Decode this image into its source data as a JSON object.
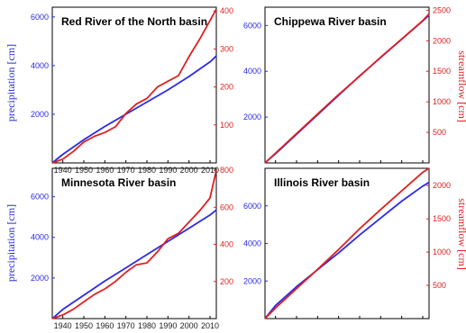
{
  "chart_data": [
    {
      "type": "line",
      "title": "Red River of the North basin",
      "xlim": [
        1935,
        2013
      ],
      "ylim_left": [
        0,
        6400
      ],
      "ylim_right": [
        0,
        410
      ],
      "left_ticks": [
        "2000",
        "4000",
        "6000"
      ],
      "right_ticks": [
        "100",
        "200",
        "300",
        "400"
      ],
      "ylabel_left": "precipitation [cm]",
      "ylabel_right": "",
      "colors": {
        "precip": "#2a2ae8",
        "flow": "#e02020"
      },
      "series": [
        {
          "axis": "left",
          "x": [
            1935,
            1940,
            1950,
            1960,
            1970,
            1980,
            1990,
            2000,
            2010,
            2013
          ],
          "values": [
            0,
            350,
            950,
            1500,
            2000,
            2500,
            3000,
            3550,
            4150,
            4400
          ]
        },
        {
          "axis": "right",
          "x": [
            1935,
            1940,
            1945,
            1950,
            1955,
            1960,
            1965,
            1970,
            1975,
            1980,
            1985,
            1990,
            1995,
            2000,
            2005,
            2010,
            2013
          ],
          "values": [
            0,
            10,
            30,
            55,
            70,
            80,
            95,
            130,
            155,
            170,
            200,
            215,
            230,
            280,
            325,
            375,
            405
          ]
        }
      ]
    },
    {
      "type": "line",
      "title": "Chippewa River basin",
      "xlim": [
        1935,
        2013
      ],
      "ylim_left": [
        0,
        6800
      ],
      "ylim_right": [
        0,
        2550
      ],
      "left_ticks": [
        "2000",
        "4000",
        "6000"
      ],
      "right_ticks": [
        "500",
        "1000",
        "1500",
        "2000",
        "2500"
      ],
      "ylabel_left": "",
      "ylabel_right": "streamflow [cm]",
      "colors": {
        "precip": "#2a2ae8",
        "flow": "#e02020"
      },
      "series": [
        {
          "axis": "left",
          "x": [
            1935,
            1940,
            1950,
            1960,
            1970,
            1980,
            1990,
            2000,
            2010,
            2013
          ],
          "values": [
            0,
            400,
            1250,
            2100,
            2950,
            3800,
            4600,
            5400,
            6200,
            6450
          ]
        },
        {
          "axis": "right",
          "x": [
            1935,
            1940,
            1950,
            1960,
            1970,
            1980,
            1990,
            2000,
            2010,
            2013
          ],
          "values": [
            0,
            160,
            480,
            800,
            1120,
            1420,
            1730,
            2030,
            2330,
            2440
          ]
        }
      ]
    },
    {
      "type": "line",
      "title": "Minnesota River basin",
      "xlim": [
        1935,
        2013
      ],
      "ylim_left": [
        0,
        7400
      ],
      "ylim_right": [
        0,
        810
      ],
      "left_ticks": [
        "2000",
        "4000",
        "6000"
      ],
      "right_ticks": [
        "200",
        "400",
        "600",
        "800"
      ],
      "ylabel_left": "precipitation [cm]",
      "ylabel_right": "",
      "colors": {
        "precip": "#2a2ae8",
        "flow": "#e02020"
      },
      "series": [
        {
          "axis": "left",
          "x": [
            1935,
            1940,
            1950,
            1960,
            1970,
            1980,
            1990,
            2000,
            2010,
            2013
          ],
          "values": [
            0,
            450,
            1150,
            1850,
            2500,
            3150,
            3800,
            4450,
            5100,
            5350
          ]
        },
        {
          "axis": "right",
          "x": [
            1935,
            1940,
            1945,
            1950,
            1955,
            1960,
            1965,
            1970,
            1975,
            1980,
            1985,
            1990,
            1995,
            2000,
            2005,
            2010,
            2013
          ],
          "values": [
            0,
            20,
            50,
            90,
            130,
            160,
            200,
            250,
            290,
            300,
            360,
            430,
            460,
            520,
            580,
            650,
            800
          ]
        }
      ]
    },
    {
      "type": "line",
      "title": "Illinois River basin",
      "xlim": [
        1935,
        2013
      ],
      "ylim_left": [
        0,
        8000
      ],
      "ylim_right": [
        0,
        2260
      ],
      "left_ticks": [
        "2000",
        "4000",
        "6000"
      ],
      "right_ticks": [
        "500",
        "1000",
        "1500",
        "2000"
      ],
      "ylabel_left": "",
      "ylabel_right": "streamflow [cm]",
      "xtick_labels": [
        "1940",
        "1950",
        "1960",
        "1970",
        "1980",
        "1990",
        "2000",
        "2010"
      ],
      "colors": {
        "precip": "#2a2ae8",
        "flow": "#e02020"
      },
      "series": [
        {
          "axis": "left",
          "x": [
            1935,
            1940,
            1950,
            1960,
            1970,
            1980,
            1990,
            2000,
            2010,
            2013
          ],
          "values": [
            0,
            700,
            1700,
            2600,
            3500,
            4450,
            5350,
            6250,
            7050,
            7250
          ]
        },
        {
          "axis": "right",
          "x": [
            1935,
            1940,
            1950,
            1960,
            1970,
            1980,
            1990,
            2000,
            2010,
            2013
          ],
          "values": [
            0,
            160,
            450,
            740,
            1040,
            1350,
            1640,
            1920,
            2200,
            2260
          ]
        }
      ]
    }
  ]
}
